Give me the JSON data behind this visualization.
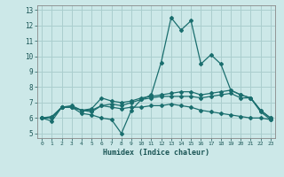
{
  "xlabel": "Humidex (Indice chaleur)",
  "background_color": "#cce8e8",
  "grid_color": "#aacece",
  "line_color": "#1a6e6e",
  "ylim": [
    4.7,
    13.3
  ],
  "xlim": [
    -0.5,
    23.5
  ],
  "yticks": [
    5,
    6,
    7,
    8,
    9,
    10,
    11,
    12,
    13
  ],
  "x_ticks": [
    0,
    1,
    2,
    3,
    4,
    5,
    6,
    7,
    8,
    9,
    10,
    11,
    12,
    13,
    14,
    15,
    16,
    17,
    18,
    19,
    20,
    21,
    22,
    23
  ],
  "series": [
    [
      6.0,
      5.8,
      6.7,
      6.7,
      6.3,
      6.2,
      6.0,
      5.9,
      5.0,
      6.5,
      7.2,
      7.5,
      9.6,
      12.5,
      11.7,
      12.3,
      9.5,
      10.1,
      9.5,
      7.8,
      7.5,
      7.3,
      6.4,
      5.9
    ],
    [
      6.0,
      6.1,
      6.7,
      6.8,
      6.5,
      6.6,
      7.3,
      7.1,
      7.0,
      7.1,
      7.3,
      7.4,
      7.5,
      7.6,
      7.7,
      7.7,
      7.5,
      7.6,
      7.7,
      7.8,
      7.5,
      7.3,
      6.5,
      6.0
    ],
    [
      6.0,
      6.0,
      6.7,
      6.7,
      6.5,
      6.4,
      6.8,
      6.7,
      6.6,
      6.7,
      6.7,
      6.8,
      6.8,
      6.9,
      6.8,
      6.7,
      6.5,
      6.4,
      6.3,
      6.2,
      6.1,
      6.0,
      6.0,
      5.9
    ],
    [
      6.0,
      6.0,
      6.7,
      6.7,
      6.5,
      6.5,
      6.8,
      6.9,
      6.8,
      7.0,
      7.2,
      7.3,
      7.4,
      7.4,
      7.4,
      7.4,
      7.3,
      7.4,
      7.5,
      7.6,
      7.3,
      7.3,
      6.5,
      6.0
    ]
  ]
}
